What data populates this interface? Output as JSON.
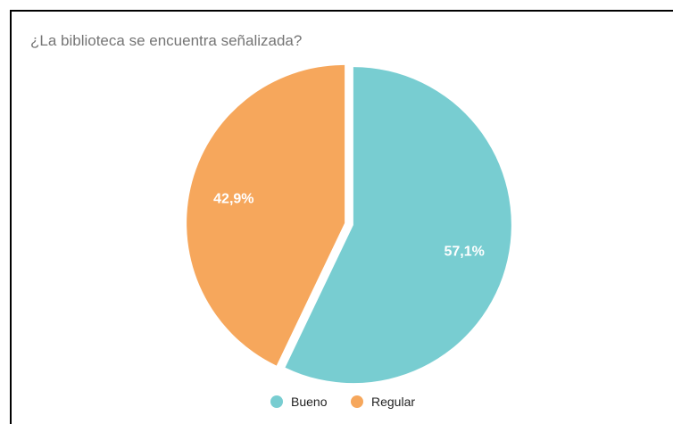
{
  "chart_data": {
    "type": "pie",
    "title": "¿La biblioteca se encuentra señalizada?",
    "categories": [
      "Bueno",
      "Regular"
    ],
    "values": [
      57.1,
      42.9
    ],
    "labels": [
      "57,1%",
      "42,9%"
    ],
    "colors": [
      "#78cdd1",
      "#f6a75c"
    ],
    "legend_position": "bottom"
  }
}
